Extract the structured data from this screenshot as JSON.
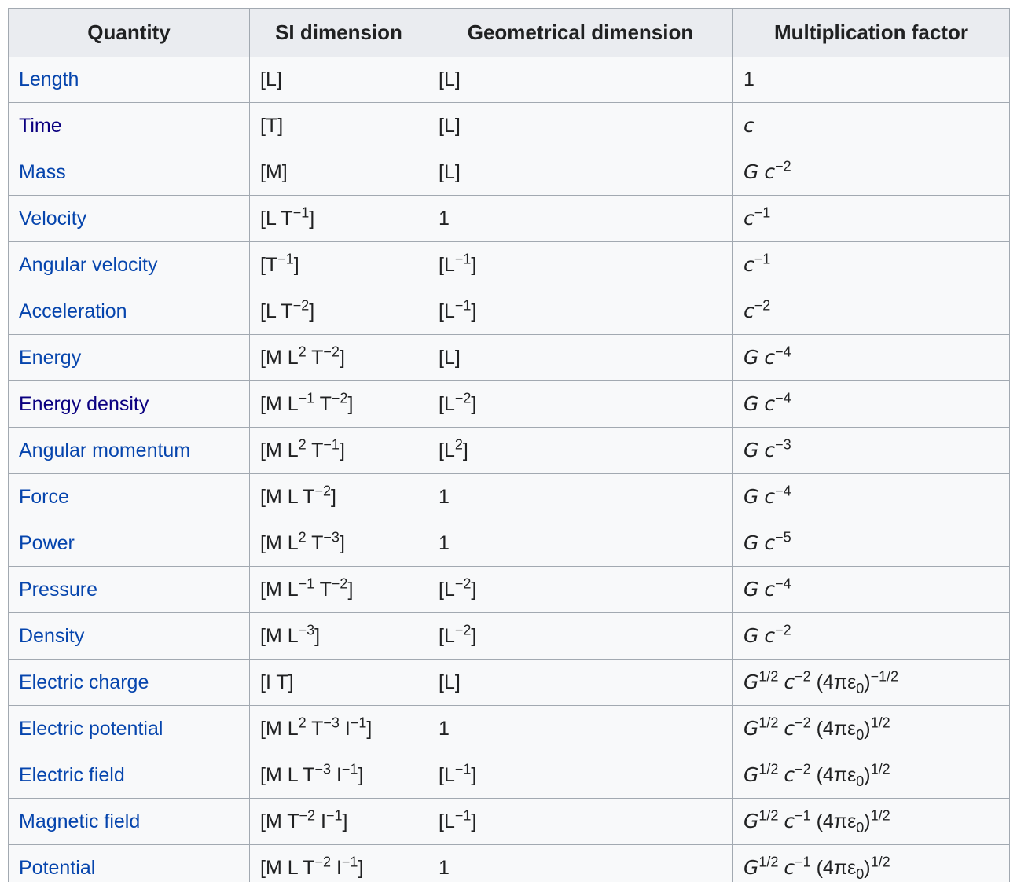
{
  "table": {
    "columns": [
      {
        "label": "Quantity"
      },
      {
        "label": "SI dimension"
      },
      {
        "label": "Geometrical dimension"
      },
      {
        "label": "Multiplication factor"
      }
    ],
    "rows": [
      {
        "quantity": "Length",
        "visited": false,
        "si": "[L]",
        "geo": "[L]",
        "factor": "1"
      },
      {
        "quantity": "Time",
        "visited": true,
        "si": "[T]",
        "geo": "[L]",
        "factor": "*c*"
      },
      {
        "quantity": "Mass",
        "visited": false,
        "si": "[M]",
        "geo": "[L]",
        "factor": "*G* *c*^{−2}"
      },
      {
        "quantity": "Velocity",
        "visited": false,
        "si": "[L T^{−1}]",
        "geo": "1",
        "factor": "*c*^{−1}"
      },
      {
        "quantity": "Angular velocity",
        "visited": false,
        "si": "[T^{−1}]",
        "geo": "[L^{−1}]",
        "factor": "*c*^{−1}"
      },
      {
        "quantity": "Acceleration",
        "visited": false,
        "si": "[L T^{−2}]",
        "geo": "[L^{−1}]",
        "factor": "*c*^{−2}"
      },
      {
        "quantity": "Energy",
        "visited": false,
        "si": "[M L^{2} T^{−2}]",
        "geo": "[L]",
        "factor": "*G* *c*^{−4}"
      },
      {
        "quantity": "Energy density",
        "visited": true,
        "si": "[M L^{−1} T^{−2}]",
        "geo": "[L^{−2}]",
        "factor": "*G* *c*^{−4}"
      },
      {
        "quantity": "Angular momentum",
        "visited": false,
        "si": "[M L^{2} T^{−1}]",
        "geo": "[L^{2}]",
        "factor": "*G* *c*^{−3}"
      },
      {
        "quantity": "Force",
        "visited": false,
        "si": "[M L T^{−2}]",
        "geo": "1",
        "factor": "*G* *c*^{−4}"
      },
      {
        "quantity": "Power",
        "visited": false,
        "si": "[M L^{2} T^{−3}]",
        "geo": "1",
        "factor": "*G* *c*^{−5}"
      },
      {
        "quantity": "Pressure",
        "visited": false,
        "si": "[M L^{−1} T^{−2}]",
        "geo": "[L^{−2}]",
        "factor": "*G* *c*^{−4}"
      },
      {
        "quantity": "Density",
        "visited": false,
        "si": "[M L^{−3}]",
        "geo": "[L^{−2}]",
        "factor": "*G* *c*^{−2}"
      },
      {
        "quantity": "Electric charge",
        "visited": false,
        "si": "[I T]",
        "geo": "[L]",
        "factor": "*G*^{1/2} *c*^{−2} (4πε_{0})^{−1/2}"
      },
      {
        "quantity": "Electric potential",
        "visited": false,
        "si": "[M L^{2} T^{−3} I^{−1}]",
        "geo": "1",
        "factor": "*G*^{1/2} *c*^{−2} (4πε_{0})^{1/2}"
      },
      {
        "quantity": "Electric field",
        "visited": false,
        "si": "[M L T^{−3} I^{−1}]",
        "geo": "[L^{−1}]",
        "factor": "*G*^{1/2} *c*^{−2} (4πε_{0})^{1/2}"
      },
      {
        "quantity": "Magnetic field",
        "visited": false,
        "si": "[M T^{−2} I^{−1}]",
        "geo": "[L^{−1}]",
        "factor": "*G*^{1/2} *c*^{−1} (4πε_{0})^{1/2}"
      },
      {
        "quantity": "Potential",
        "visited": false,
        "si": "[M L T^{−2} I^{−1}]",
        "geo": "1",
        "factor": "*G*^{1/2} *c*^{−1} (4πε_{0})^{1/2}"
      }
    ],
    "colors": {
      "link": "#0645ad",
      "link_visited": "#0b0080",
      "header_bg": "#eaecf0",
      "cell_bg": "#f8f9fa",
      "border": "#a2a9b1",
      "text": "#202122"
    }
  }
}
